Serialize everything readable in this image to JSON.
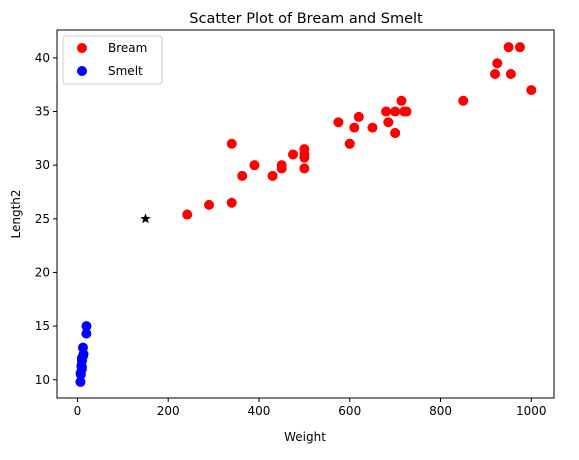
{
  "chart_data": {
    "type": "scatter",
    "title": "Scatter Plot of Bream and Smelt",
    "xlabel": "Weight",
    "ylabel": "Length2",
    "xlim": [
      -45,
      1050
    ],
    "ylim": [
      8.3,
      42.6
    ],
    "x_ticks": [
      0,
      200,
      400,
      600,
      800,
      1000
    ],
    "y_ticks": [
      10,
      15,
      20,
      25,
      30,
      35,
      40
    ],
    "grid": false,
    "legend_position": "top-left",
    "series": [
      {
        "name": "Bream",
        "color": "#ff0000",
        "marker": "circle",
        "points": [
          [
            242,
            25.4
          ],
          [
            290,
            26.3
          ],
          [
            340,
            26.5
          ],
          [
            363,
            29.0
          ],
          [
            430,
            29.0
          ],
          [
            450,
            29.7
          ],
          [
            500,
            29.7
          ],
          [
            390,
            30.0
          ],
          [
            450,
            30.0
          ],
          [
            500,
            30.7
          ],
          [
            475,
            31.0
          ],
          [
            500,
            31.0
          ],
          [
            500,
            31.5
          ],
          [
            340,
            32.0
          ],
          [
            600,
            32.0
          ],
          [
            600,
            32.0
          ],
          [
            700,
            33.0
          ],
          [
            700,
            33.0
          ],
          [
            610,
            33.5
          ],
          [
            650,
            33.5
          ],
          [
            575,
            34.0
          ],
          [
            685,
            34.0
          ],
          [
            620,
            34.5
          ],
          [
            680,
            35.0
          ],
          [
            700,
            35.0
          ],
          [
            725,
            35.0
          ],
          [
            720,
            35.0
          ],
          [
            714,
            36.0
          ],
          [
            850,
            36.0
          ],
          [
            1000,
            37.0
          ],
          [
            920,
            38.5
          ],
          [
            955,
            38.5
          ],
          [
            925,
            39.5
          ],
          [
            975,
            41.0
          ],
          [
            950,
            41.0
          ]
        ]
      },
      {
        "name": "Smelt",
        "color": "#0000ff",
        "marker": "circle",
        "points": [
          [
            6.7,
            9.8
          ],
          [
            7.5,
            10.5
          ],
          [
            7.0,
            10.6
          ],
          [
            9.7,
            11.0
          ],
          [
            9.8,
            11.2
          ],
          [
            8.7,
            11.3
          ],
          [
            10.0,
            11.8
          ],
          [
            9.9,
            11.8
          ],
          [
            9.8,
            12.0
          ],
          [
            12.2,
            12.2
          ],
          [
            13.4,
            12.4
          ],
          [
            12.2,
            13.0
          ],
          [
            19.7,
            14.3
          ],
          [
            19.9,
            15.0
          ]
        ]
      },
      {
        "name": "",
        "color": "#000000",
        "marker": "star",
        "points": [
          [
            150,
            25
          ]
        ]
      }
    ]
  }
}
